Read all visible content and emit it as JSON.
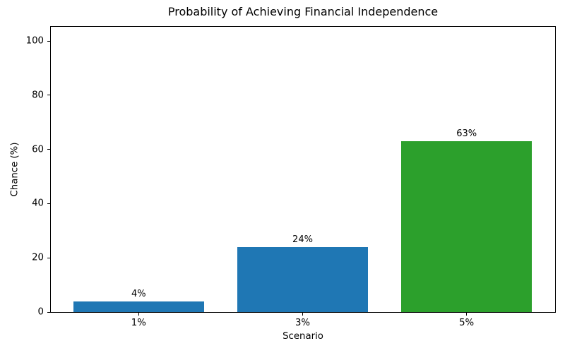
{
  "chart_data": {
    "type": "bar",
    "title": "Probability of Achieving Financial Independence",
    "xlabel": "Scenario",
    "ylabel": "Chance (%)",
    "categories": [
      "1%",
      "3%",
      "5%"
    ],
    "values": [
      4,
      24,
      63
    ],
    "value_labels": [
      "4%",
      "24%",
      "63%"
    ],
    "bar_colors": [
      "#1f77b4",
      "#1f77b4",
      "#2ca02c"
    ],
    "ylim": [
      0,
      105.5
    ],
    "yticks": [
      0,
      20,
      40,
      60,
      80,
      100
    ],
    "grid": false,
    "legend_position": "none",
    "background_color": "#ffffff",
    "axis_color": "#000000"
  }
}
